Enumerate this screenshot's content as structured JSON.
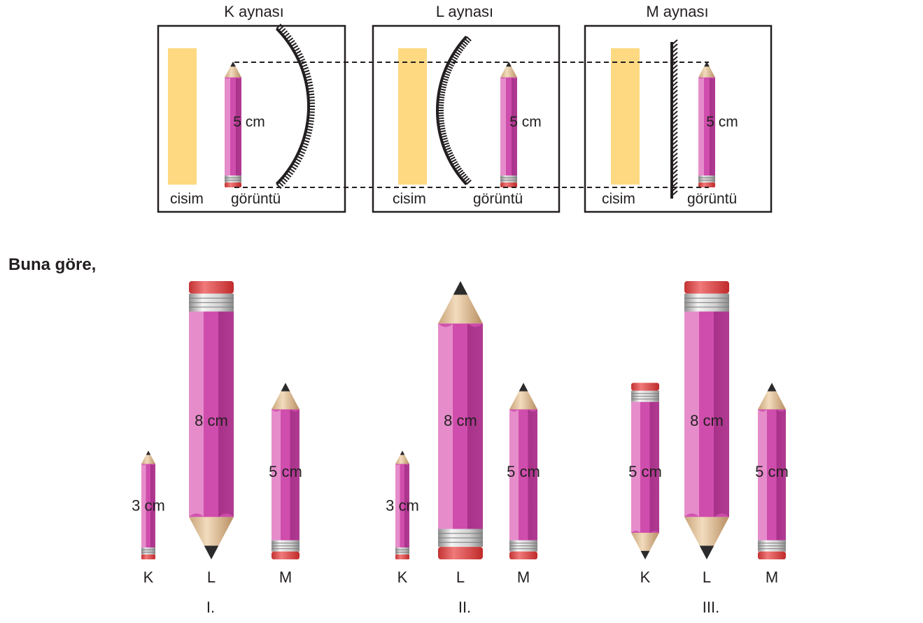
{
  "panels": [
    {
      "title": "K aynası",
      "object_label": "cisim",
      "image_label": "görüntü",
      "image_length": "5 cm",
      "mirror": "convex-icon"
    },
    {
      "title": "L aynası",
      "object_label": "cisim",
      "image_label": "görüntü",
      "image_length": "5 cm",
      "mirror": "concave-icon"
    },
    {
      "title": "M aynası",
      "object_label": "cisim",
      "image_label": "görüntü",
      "image_length": "5 cm",
      "mirror": "plane-icon"
    }
  ],
  "question": "Buna göre,",
  "options": [
    {
      "numeral": "I.",
      "pencils": [
        {
          "mirror": "K",
          "length_label": "3 cm",
          "length_cm": 3,
          "orientation": "upright"
        },
        {
          "mirror": "L",
          "length_label": "8 cm",
          "length_cm": 8,
          "orientation": "inverted"
        },
        {
          "mirror": "M",
          "length_label": "5 cm",
          "length_cm": 5,
          "orientation": "upright"
        }
      ]
    },
    {
      "numeral": "II.",
      "pencils": [
        {
          "mirror": "K",
          "length_label": "3 cm",
          "length_cm": 3,
          "orientation": "upright"
        },
        {
          "mirror": "L",
          "length_label": "8 cm",
          "length_cm": 8,
          "orientation": "upright"
        },
        {
          "mirror": "M",
          "length_label": "5 cm",
          "length_cm": 5,
          "orientation": "upright"
        }
      ]
    },
    {
      "numeral": "III.",
      "pencils": [
        {
          "mirror": "K",
          "length_label": "5 cm",
          "length_cm": 5,
          "orientation": "inverted"
        },
        {
          "mirror": "L",
          "length_label": "8 cm",
          "length_cm": 8,
          "orientation": "inverted"
        },
        {
          "mirror": "M",
          "length_label": "5 cm",
          "length_cm": 5,
          "orientation": "upright"
        }
      ]
    }
  ],
  "colors": {
    "pencil_body": "#d04fae",
    "pencil_light": "#e68ccb",
    "pencil_dark": "#a8328a",
    "eraser": "#e04a4a",
    "ferrule": "#c8c8c8",
    "wood": "#e9d2b0",
    "lead": "#2b2b2b",
    "object": "#fed981"
  }
}
